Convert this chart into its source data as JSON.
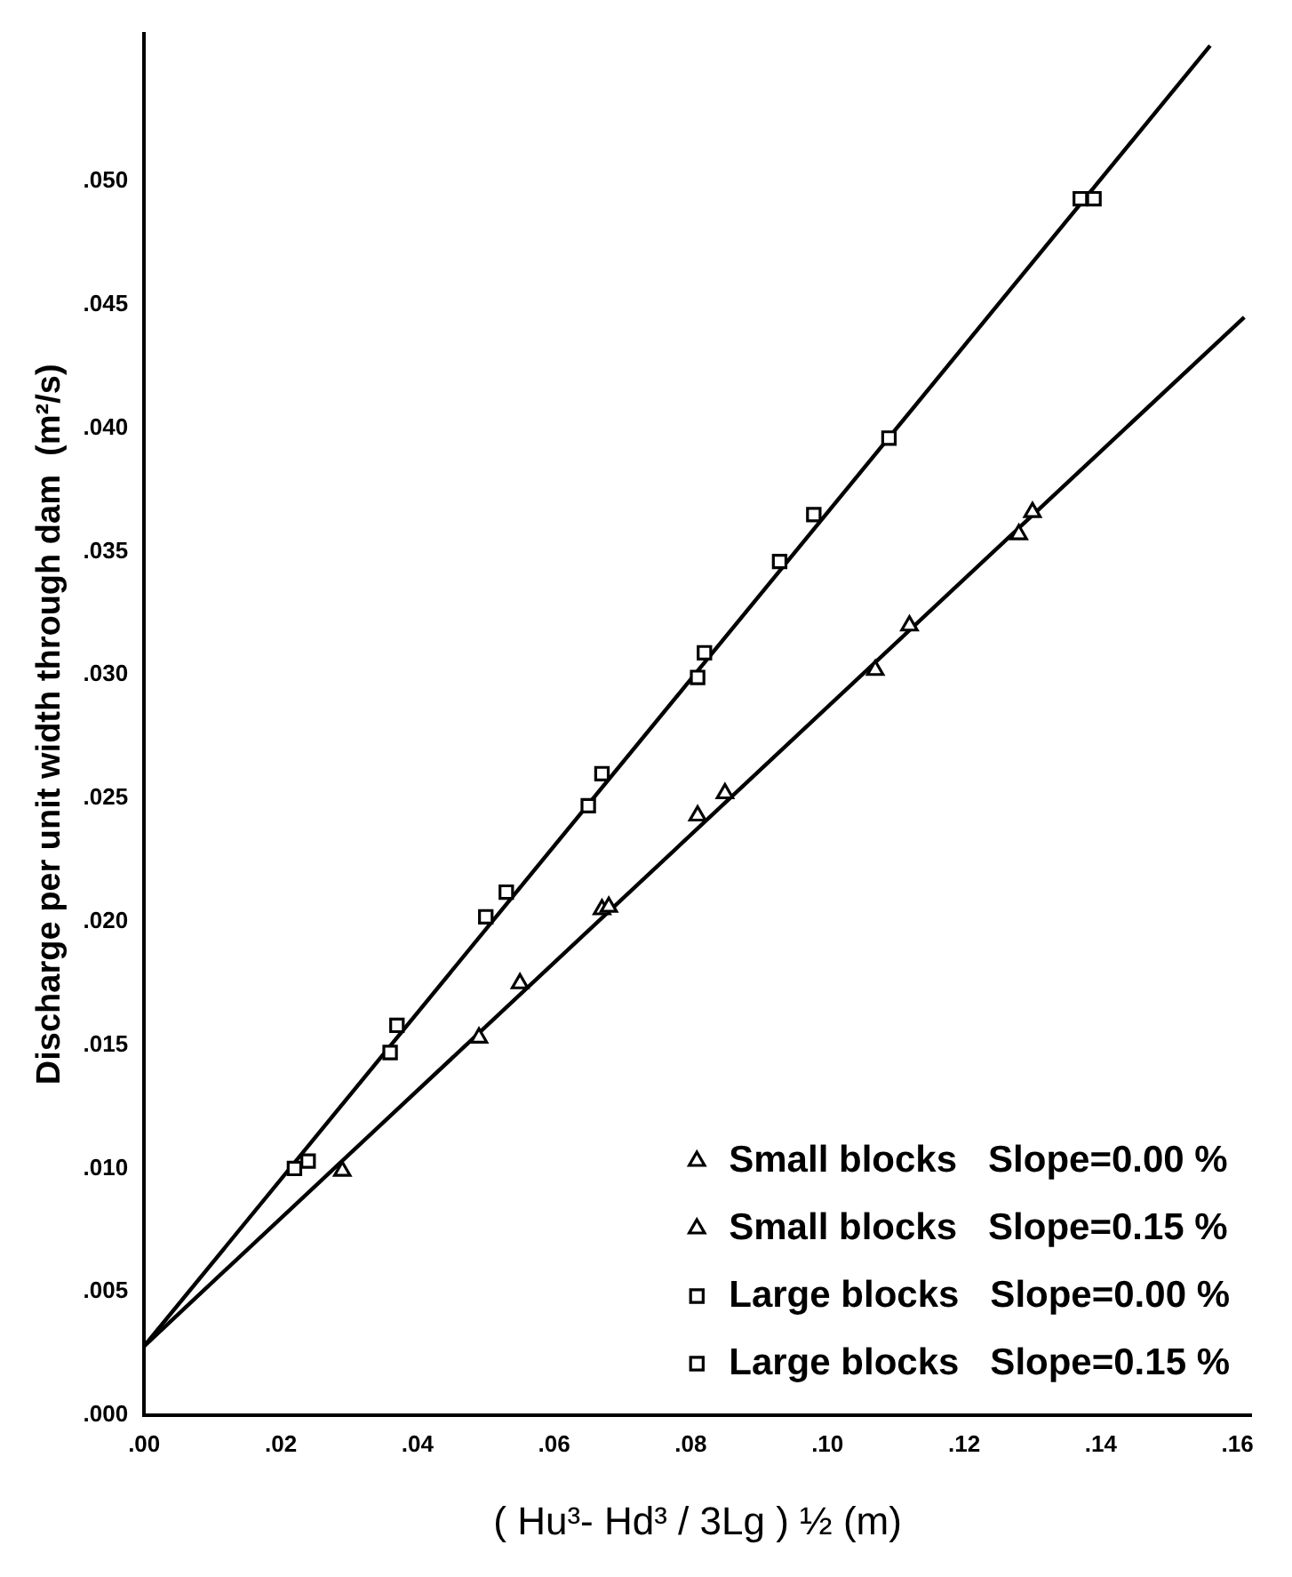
{
  "chart_data": {
    "type": "scatter",
    "xlabel": "( Hu³- Hd³ / 3Lg ) ½ (m)",
    "ylabel": "Discharge per unit width through dam  (m²/s)",
    "xlim": [
      0,
      0.162
    ],
    "ylim": [
      0,
      0.056
    ],
    "xticks": [
      {
        "value": 0,
        "label": ".00"
      },
      {
        "value": 0.02,
        "label": ".02"
      },
      {
        "value": 0.04,
        "label": ".04"
      },
      {
        "value": 0.06,
        "label": ".06"
      },
      {
        "value": 0.08,
        "label": ".08"
      },
      {
        "value": 0.1,
        "label": ".10"
      },
      {
        "value": 0.12,
        "label": ".12"
      },
      {
        "value": 0.14,
        "label": ".14"
      },
      {
        "value": 0.16,
        "label": ".16"
      }
    ],
    "yticks": [
      {
        "value": 0,
        "label": ".000"
      },
      {
        "value": 0.005,
        "label": ".005"
      },
      {
        "value": 0.01,
        "label": ".010"
      },
      {
        "value": 0.015,
        "label": ".015"
      },
      {
        "value": 0.02,
        "label": ".020"
      },
      {
        "value": 0.025,
        "label": ".025"
      },
      {
        "value": 0.03,
        "label": ".030"
      },
      {
        "value": 0.035,
        "label": ".035"
      },
      {
        "value": 0.04,
        "label": ".040"
      },
      {
        "value": 0.045,
        "label": ".045"
      },
      {
        "value": 0.05,
        "label": ".050"
      }
    ],
    "grid": false,
    "legend": "bottom right",
    "series": [
      {
        "name": "Small blocks   Slope=0.00 %",
        "marker": "triangle",
        "color": "#000000",
        "x": [
          0.029,
          0.049,
          0.068,
          0.107,
          0.128
        ],
        "values": [
          0.0099,
          0.0153,
          0.0206,
          0.0302,
          0.0357
        ]
      },
      {
        "name": "Small blocks   Slope=0.15 %",
        "marker": "triangle",
        "color": "#000000",
        "x": [
          0.055,
          0.067,
          0.081,
          0.085,
          0.112,
          0.13
        ],
        "values": [
          0.0175,
          0.0205,
          0.0243,
          0.0252,
          0.032,
          0.0366
        ]
      },
      {
        "name": "Large blocks   Slope=0.00 %",
        "marker": "square",
        "color": "#000000",
        "x": [
          0.024,
          0.036,
          0.05,
          0.065,
          0.081,
          0.109,
          0.139
        ],
        "values": [
          0.0103,
          0.0147,
          0.0202,
          0.0247,
          0.0299,
          0.0396,
          0.0493
        ]
      },
      {
        "name": "Large blocks   Slope=0.15 %",
        "marker": "square",
        "color": "#000000",
        "x": [
          0.022,
          0.037,
          0.053,
          0.067,
          0.082,
          0.093,
          0.098,
          0.137
        ],
        "values": [
          0.01,
          0.0158,
          0.0212,
          0.026,
          0.0309,
          0.0346,
          0.0365,
          0.0493
        ]
      },
      {
        "type": "line",
        "marker": "none",
        "line_style": "solid",
        "color": "#000000",
        "x": [
          0,
          0.156
        ],
        "values": [
          0.0028,
          0.0555
        ]
      },
      {
        "type": "line",
        "marker": "none",
        "line_style": "solid",
        "color": "#000000",
        "x": [
          0,
          0.161
        ],
        "values": [
          0.0028,
          0.0445
        ]
      }
    ]
  }
}
